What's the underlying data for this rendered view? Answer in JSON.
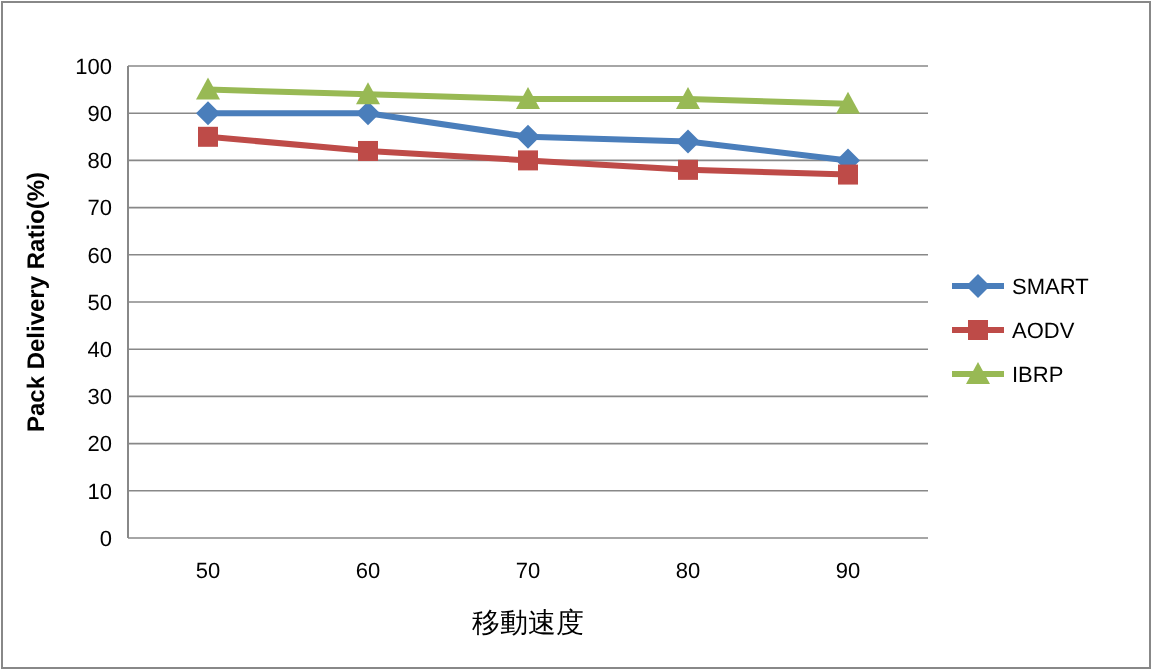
{
  "chart_data": {
    "type": "line",
    "xlabel": "移動速度",
    "ylabel": "Pack Delivery Ratio(%)",
    "categories": [
      "50",
      "60",
      "70",
      "80",
      "90"
    ],
    "ylim": [
      0,
      100
    ],
    "yticks": [
      0,
      10,
      20,
      30,
      40,
      50,
      60,
      70,
      80,
      90,
      100
    ],
    "grid": "y",
    "legend": "right",
    "series": [
      {
        "name": "SMART",
        "color": "#4a7ebb",
        "marker": "diamond",
        "values": [
          90,
          90,
          85,
          84,
          80
        ]
      },
      {
        "name": "AODV",
        "color": "#be4b48",
        "marker": "square",
        "values": [
          85,
          82,
          80,
          78,
          77
        ]
      },
      {
        "name": "IBRP",
        "color": "#98b954",
        "marker": "triangle",
        "values": [
          95,
          94,
          93,
          93,
          92
        ]
      }
    ]
  }
}
